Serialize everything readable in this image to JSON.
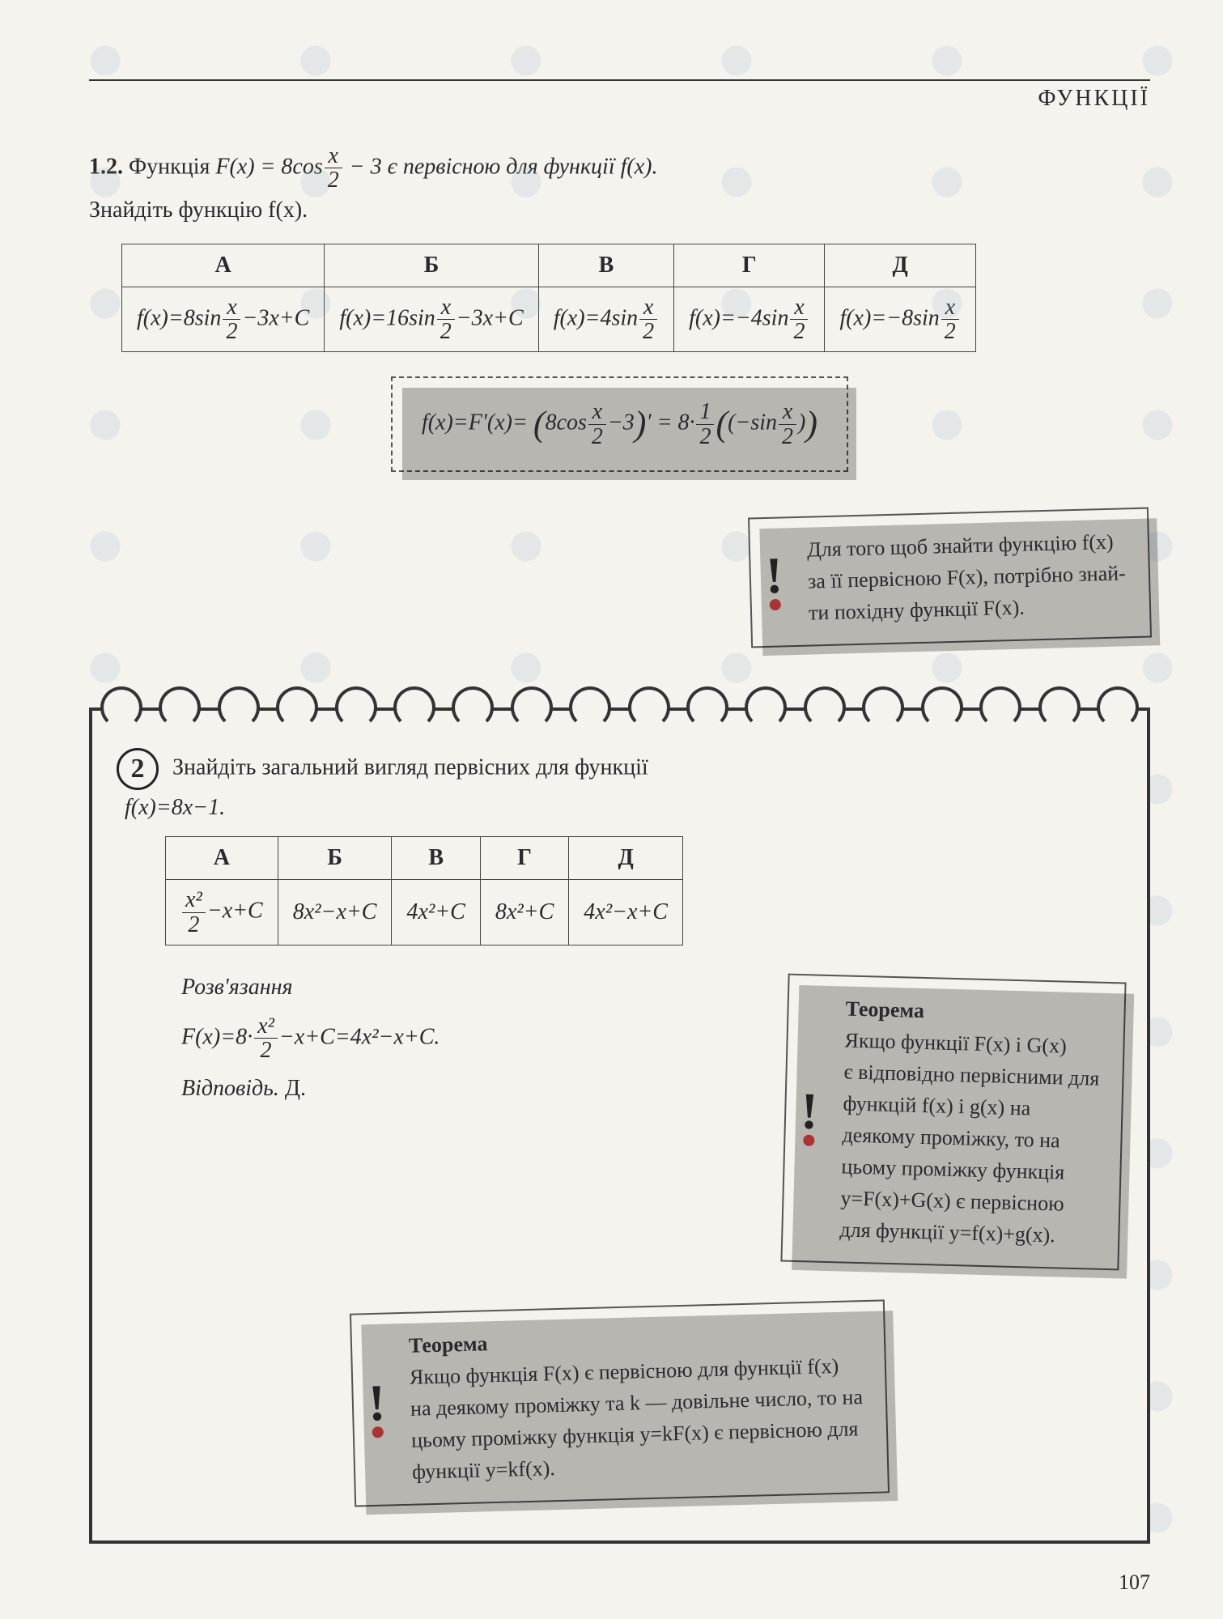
{
  "header": {
    "title": "ФУНКЦІЇ"
  },
  "problem1_2": {
    "number": "1.2.",
    "statement_1a": "Функція ",
    "statement_1b": "F(x) = 8cos",
    "frac_num": "x",
    "frac_den": "2",
    "statement_1c": " − 3 є первісною для функції f(x).",
    "statement_2": "Знайдіть функцію f(x).",
    "choices": {
      "headers": [
        "А",
        "Б",
        "В",
        "Г",
        "Д"
      ],
      "A": {
        "pre": "f(x)=8sin",
        "num": "x",
        "den": "2",
        "post": "−3x+C"
      },
      "B": {
        "pre": "f(x)=16sin",
        "num": "x",
        "den": "2",
        "post": "−3x+C"
      },
      "V": {
        "pre": "f(x)=4sin",
        "num": "x",
        "den": "2",
        "post": ""
      },
      "G": {
        "pre": "f(x)=−4sin",
        "num": "x",
        "den": "2",
        "post": ""
      },
      "D": {
        "pre": "f(x)=−8sin",
        "num": "x",
        "den": "2",
        "post": ""
      }
    },
    "workbox": {
      "p1": "f(x)=F′(x)=",
      "p2": "8cos",
      "f_num": "x",
      "f_den": "2",
      "p3": "−3",
      "p4": "′ = 8·",
      "half_num": "1",
      "half_den": "2",
      "p5": "(−sin",
      "sin_num": "x",
      "sin_den": "2",
      "p6": ")"
    },
    "tip": {
      "l1": "Для того щоб знайти функцію f(x)",
      "l2": "за її первісною F(x), потрібно знай-",
      "l3": "ти похідну функції F(x)."
    }
  },
  "problem2": {
    "number": "2",
    "statement_1": "Знайдіть загальний вигляд первісних для функції",
    "statement_2": "f(x)=8x−1.",
    "choices": {
      "headers": [
        "А",
        "Б",
        "В",
        "Г",
        "Д"
      ],
      "A": {
        "num": "x²",
        "den": "2",
        "post": "−x+C"
      },
      "B": {
        "text": "8x²−x+C"
      },
      "V": {
        "text": "4x²+C"
      },
      "G": {
        "text": "8x²+C"
      },
      "D": {
        "text": "4x²−x+C"
      }
    },
    "solution_label": "Розв'язання",
    "solution_1a": "F(x)=8·",
    "sol_num": "x²",
    "sol_den": "2",
    "solution_1b": "−x+C=4x²−x+C.",
    "answer_label": "Відповідь.",
    "answer_val": "Д.",
    "theorem1": {
      "title": "Теорема",
      "l1": "Якщо функції F(x) і G(x)",
      "l2": "є відповідно первісними для",
      "l3": "функцій f(x) і g(x) на",
      "l4": "деякому проміжку, то на",
      "l5": "цьому проміжку функція",
      "l6": "y=F(x)+G(x) є первісною",
      "l7": "для функції y=f(x)+g(x)."
    },
    "theorem2": {
      "title": "Теорема",
      "l1": "Якщо функція F(x) є первісною для функції f(x)",
      "l2": "на деякому проміжку та k — довільне число, то на",
      "l3": "цьому проміжку функція y=kF(x) є первісною для",
      "l4": "функції y=kf(x)."
    }
  },
  "page_number": "107",
  "layout": {
    "ring_count": 18
  }
}
